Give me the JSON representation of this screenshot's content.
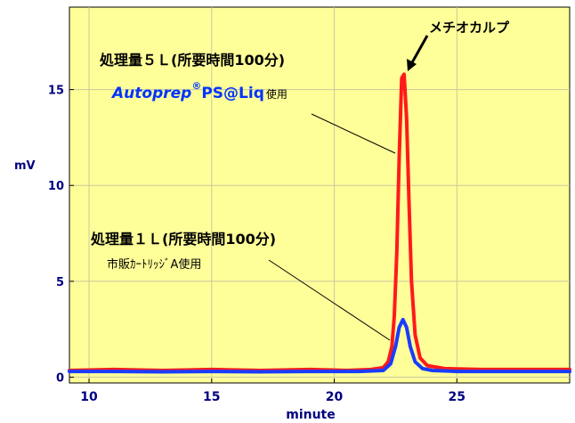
{
  "chart_data": {
    "type": "line",
    "title": "",
    "xlabel": "minute",
    "ylabel": "mV",
    "xlim": [
      9.2,
      29.6
    ],
    "ylim": [
      -0.3,
      19.3
    ],
    "x_ticks": [
      10,
      15,
      20,
      25
    ],
    "y_ticks": [
      0,
      5,
      10,
      15
    ],
    "x_tick_labels": [
      "10",
      "15",
      "20",
      "25"
    ],
    "y_tick_labels": [
      "0",
      "5",
      "10",
      "15"
    ],
    "grid": true,
    "legend": "none",
    "series": [
      {
        "color": "#ff1a1a",
        "x": [
          9.2,
          11,
          13,
          15,
          17,
          19,
          20.5,
          21.5,
          22,
          22.2,
          22.35,
          22.45,
          22.55,
          22.65,
          22.75,
          22.85,
          22.95,
          23.05,
          23.15,
          23.3,
          23.5,
          23.8,
          24.5,
          26,
          28,
          29.6
        ],
        "y": [
          0.35,
          0.4,
          0.35,
          0.4,
          0.35,
          0.4,
          0.35,
          0.4,
          0.5,
          0.8,
          1.6,
          3.2,
          6.5,
          11.5,
          15.6,
          15.8,
          13.5,
          9.0,
          5.0,
          2.2,
          1.0,
          0.6,
          0.45,
          0.4,
          0.4,
          0.4
        ]
      },
      {
        "color": "#1a3cff",
        "x": [
          9.2,
          11,
          13,
          15,
          17,
          19,
          21,
          22,
          22.3,
          22.5,
          22.65,
          22.8,
          22.95,
          23.1,
          23.3,
          23.6,
          24,
          25,
          27,
          29.6
        ],
        "y": [
          0.3,
          0.3,
          0.28,
          0.3,
          0.28,
          0.3,
          0.3,
          0.35,
          0.7,
          1.6,
          2.6,
          3.0,
          2.6,
          1.6,
          0.8,
          0.45,
          0.35,
          0.3,
          0.3,
          0.3
        ]
      }
    ],
    "peak_label": "メチオカルプ",
    "annotations": {
      "upper_condition": "処理量５Ｌ(所要時間100分)",
      "upper_product": "Autoprep",
      "upper_mark": "®",
      "upper_product_suffix": "PS@Liq",
      "upper_use": "使用",
      "lower_condition": "処理量１Ｌ(所要時間100分)",
      "lower_product": "市販ｶｰﾄﾘｯｼﾞA使用"
    },
    "colors": {
      "plot_background": "#ffff99",
      "grid": "#c8c8a0",
      "axis_label": "#000080",
      "annotation_blue": "#0033ff"
    }
  }
}
